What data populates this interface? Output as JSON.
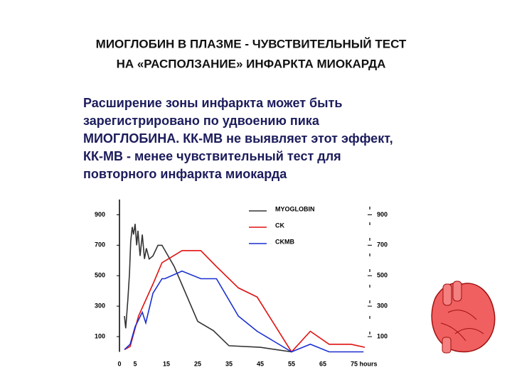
{
  "title": [
    "МИОГЛОБИН В ПЛАЗМЕ - ЧУВСТВИТЕЛЬНЫЙ ТЕСТ",
    "НА «РАСПОЛЗАНИЕ» ИНФАРКТА МИОКАРДА"
  ],
  "text": [
    "Расширение зоны инфаркта может быть",
    "зарегистрировано по удвоению пика",
    "МИОГЛОБИНА. КК-МВ не выявляет этот эффект,",
    "КК-МВ - менее чувствительный тест для",
    "повторного инфаркта миокарда"
  ],
  "chart_data": {
    "type": "line",
    "xlim": [
      0,
      80
    ],
    "xticks": [
      0,
      5,
      15,
      25,
      35,
      45,
      55,
      65,
      {
        "value": 75,
        "label": "75 hours"
      }
    ],
    "ylim": [
      0,
      1000
    ],
    "yticks": [
      900,
      700,
      500,
      300,
      100
    ],
    "y2lim": [
      0,
      1000
    ],
    "y2ticks": [
      900,
      700,
      500,
      300,
      100
    ],
    "series": [
      {
        "name": "MYOGLOBIN",
        "color": "#333333",
        "x": [
          1.6,
          2,
          2.7,
          3.2,
          3.6,
          4.1,
          4.5,
          5,
          5.5,
          5.9,
          6.6,
          7.3,
          8,
          8.6,
          9.5,
          10.7,
          12.3,
          13.6,
          17.5,
          25,
          30,
          35,
          45,
          50,
          55
        ],
        "values": [
          235,
          155,
          350,
          515,
          725,
          820,
          770,
          840,
          700,
          795,
          630,
          770,
          610,
          680,
          610,
          630,
          700,
          700,
          560,
          200,
          140,
          40,
          30,
          15,
          0
        ]
      },
      {
        "name": "CK",
        "color": "#e01010",
        "x": [
          1.6,
          3.4,
          6.1,
          10.7,
          13.6,
          20,
          26,
          31,
          38,
          44,
          55,
          61,
          67,
          74,
          78.4
        ],
        "values": [
          15,
          35,
          235,
          445,
          585,
          665,
          665,
          560,
          420,
          360,
          0,
          135,
          50,
          50,
          30
        ]
      },
      {
        "name": "CKMB",
        "color": "#1a2fd0",
        "x": [
          1.6,
          3.4,
          5,
          7.3,
          8.4,
          10.7,
          13.6,
          14.5,
          20,
          26,
          31,
          38,
          44,
          55,
          61,
          67,
          78
        ],
        "values": [
          15,
          50,
          165,
          260,
          190,
          385,
          480,
          480,
          530,
          480,
          480,
          235,
          135,
          0,
          50,
          0,
          0
        ]
      }
    ]
  }
}
